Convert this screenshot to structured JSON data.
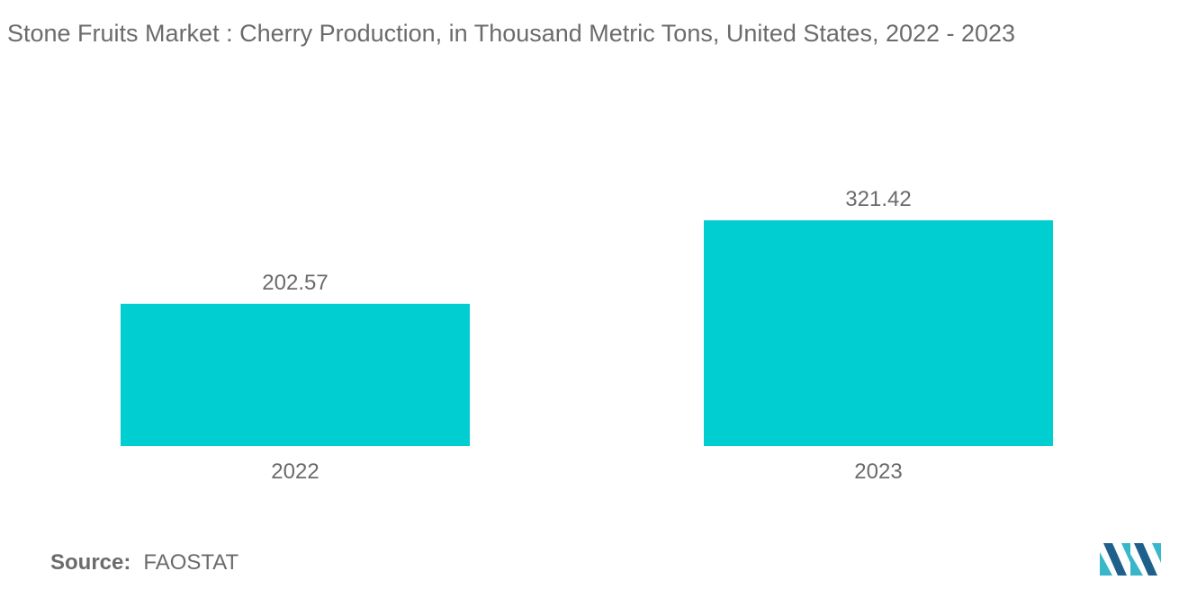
{
  "chart_data": {
    "type": "bar",
    "title": "Stone Fruits Market : Cherry Production, in Thousand Metric Tons, United States, 2022 - 2023",
    "categories": [
      "2022",
      "2023"
    ],
    "values": [
      202.57,
      321.42
    ],
    "data_labels": [
      "202.57",
      "321.42"
    ],
    "xlabel": "",
    "ylabel": "",
    "ylim": [
      0,
      321.42
    ],
    "grid": false,
    "legend": "none",
    "bar_color": "#00ced1"
  },
  "source": {
    "label": "Source:",
    "value": "FAOSTAT"
  },
  "colors": {
    "text": "#6b6b6b",
    "logo_dark": "#1f5f8b",
    "logo_light": "#37b7c9"
  },
  "logo": {
    "icon": "mordor-intelligence-logo-icon"
  }
}
